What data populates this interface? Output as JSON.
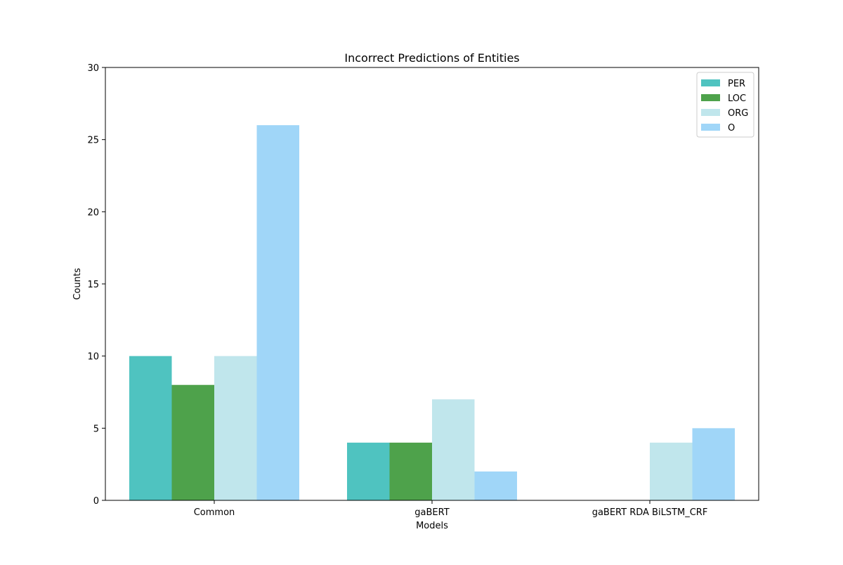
{
  "chart_data": {
    "type": "bar",
    "title": "Incorrect Predictions of Entities",
    "xlabel": "Models",
    "ylabel": "Counts",
    "categories": [
      "Common",
      "gaBERT",
      "gaBERT RDA BiLSTM_CRF"
    ],
    "series": [
      {
        "name": "PER",
        "color": "#4fc3c0",
        "values": [
          10,
          4,
          0
        ]
      },
      {
        "name": "LOC",
        "color": "#4ea24b",
        "values": [
          8,
          4,
          0
        ]
      },
      {
        "name": "ORG",
        "color": "#c0e6ec",
        "values": [
          10,
          7,
          4
        ]
      },
      {
        "name": "O",
        "color": "#a0d6f8",
        "values": [
          26,
          2,
          5
        ]
      }
    ],
    "ylim": [
      0,
      30
    ],
    "yticks": [
      0,
      5,
      10,
      15,
      20,
      25,
      30
    ],
    "grid": false,
    "legend_position": "top-right"
  }
}
